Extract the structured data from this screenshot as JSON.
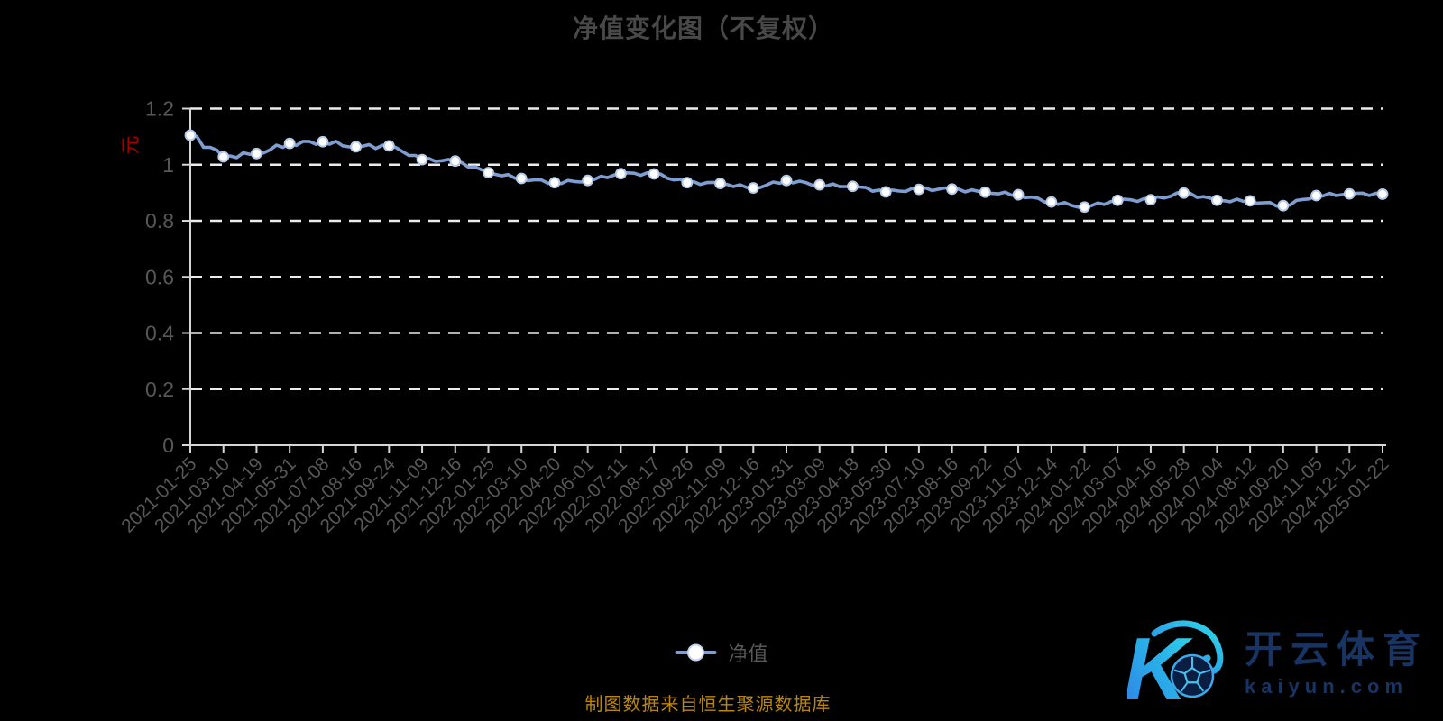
{
  "title": "净值变化图（不复权）",
  "y_axis": {
    "unit": "元",
    "tick_values": [
      0,
      0.2,
      0.4,
      0.6,
      0.8,
      1,
      1.2
    ],
    "tick_labels": [
      "0",
      "0.2",
      "0.4",
      "0.6",
      "0.8",
      "1",
      "1.2"
    ]
  },
  "legend": {
    "items": [
      {
        "label": "净值"
      }
    ]
  },
  "footer": {
    "source_note": "制图数据来自恒生聚源数据库"
  },
  "watermark": {
    "monogram": "K",
    "brand_cn": "开云体育",
    "brand_url": "kaiyun.com"
  },
  "colors": {
    "background": "#000000",
    "title": "#484848",
    "axis_label": "#575757",
    "grid": "#ececec",
    "axis": "#d6d6d6",
    "line": "#7e9ed2",
    "marker_fill": "#ffffff",
    "marker_ring": "#b7cbe8",
    "unit_label": "#a40000",
    "footer_note": "#b8860b",
    "brand_navy": "#173463",
    "logo_gradient_start": "#2f7fe6",
    "logo_gradient_end": "#31d8e6"
  },
  "chart_data": {
    "type": "line",
    "title": "净值变化图（不复权）",
    "categories": [
      "2021-01-25",
      "2021-03-10",
      "2021-04-19",
      "2021-05-31",
      "2021-07-08",
      "2021-08-16",
      "2021-09-24",
      "2021-11-09",
      "2021-12-16",
      "2022-01-25",
      "2022-03-10",
      "2022-04-20",
      "2022-06-01",
      "2022-07-11",
      "2022-08-17",
      "2022-09-26",
      "2022-11-09",
      "2022-12-16",
      "2023-01-31",
      "2023-03-09",
      "2023-04-18",
      "2023-05-30",
      "2023-07-10",
      "2023-08-16",
      "2023-09-22",
      "2023-11-07",
      "2023-12-14",
      "2024-01-22",
      "2024-03-07",
      "2024-04-16",
      "2024-05-28",
      "2024-07-04",
      "2024-08-12",
      "2024-09-20",
      "2024-11-05",
      "2024-12-12",
      "2025-01-22"
    ],
    "series": [
      {
        "name": "净值",
        "values": [
          1.105,
          1.028,
          1.04,
          1.076,
          1.082,
          1.064,
          1.067,
          1.018,
          1.013,
          0.972,
          0.951,
          0.936,
          0.944,
          0.968,
          0.967,
          0.936,
          0.933,
          0.917,
          0.944,
          0.928,
          0.923,
          0.903,
          0.912,
          0.913,
          0.902,
          0.893,
          0.867,
          0.849,
          0.873,
          0.875,
          0.899,
          0.873,
          0.871,
          0.854,
          0.89,
          0.896,
          0.895
        ]
      }
    ],
    "ylim": [
      0,
      1.2
    ],
    "grid": "horizontal-dashed",
    "legend_position": "bottom-center",
    "x_label_rotate": 45
  }
}
